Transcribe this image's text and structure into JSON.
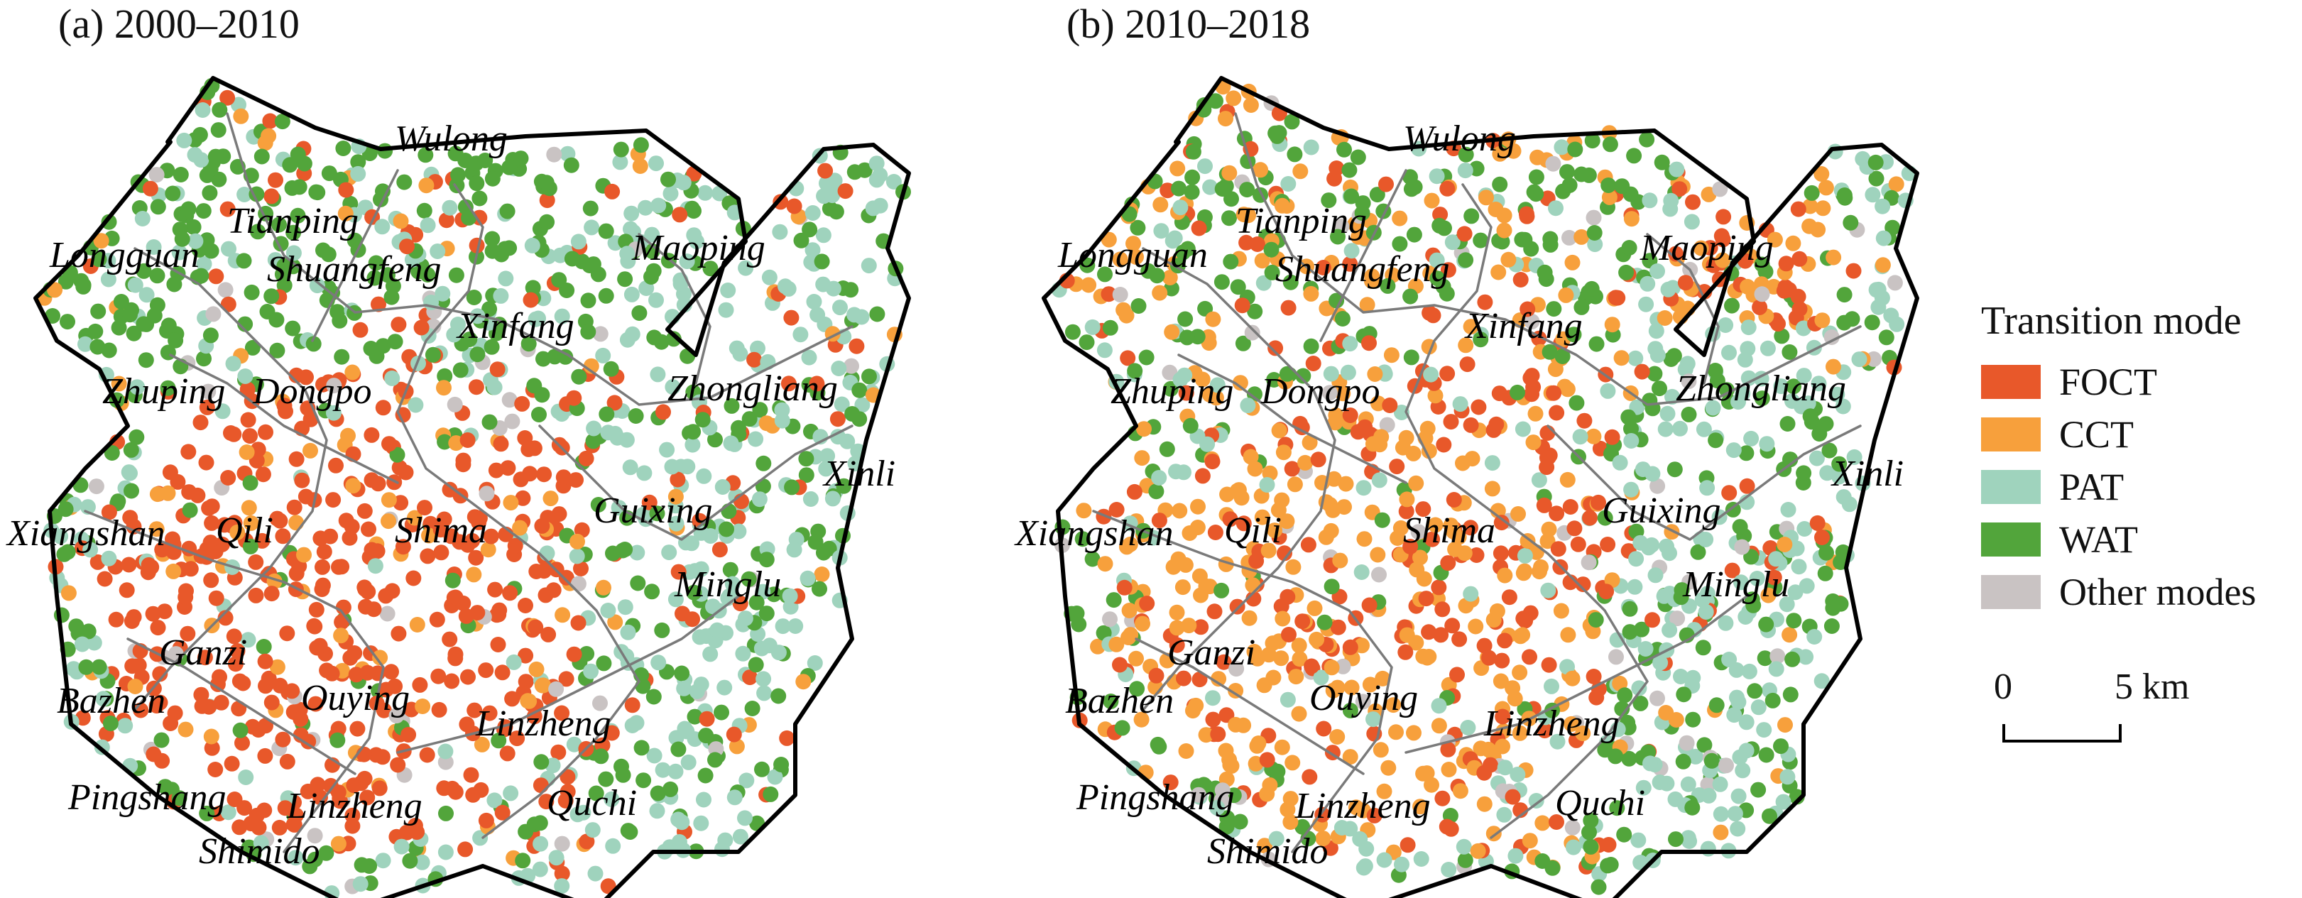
{
  "panels": [
    {
      "title": "(a) 2000–2010"
    },
    {
      "title": "(b) 2010–2018"
    }
  ],
  "towns": [
    "Wulong",
    "Tianping",
    "Longguan",
    "Shuangfeng",
    "Maoping",
    "Xinfang",
    "Zhuping",
    "Dongpo",
    "Zhongliang",
    "Xinli",
    "Xiangshan",
    "Qili",
    "Shima",
    "Guixing",
    "Minglu",
    "Ganzi",
    "Bazhen",
    "Ouying",
    "Linzheng",
    "Pingshang",
    "Linzheng",
    "Quchi",
    "Shimido"
  ],
  "legend": {
    "title": "Transition mode",
    "items": [
      {
        "label": "FOCT",
        "color": "#e8582a"
      },
      {
        "label": "CCT",
        "color": "#f7a03c"
      },
      {
        "label": "PAT",
        "color": "#9fd3bd"
      },
      {
        "label": "WAT",
        "color": "#52a53b"
      },
      {
        "label": "Other modes",
        "color": "#c9c3c3"
      }
    ]
  },
  "scale": {
    "start": "0",
    "end": "5 km"
  }
}
